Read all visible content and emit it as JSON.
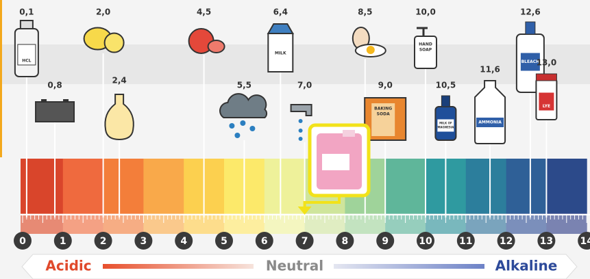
{
  "items": [
    {
      "label": "0,1",
      "icon_text": "HCL"
    },
    {
      "label": "0,8"
    },
    {
      "label": "2,0"
    },
    {
      "label": "2,4"
    },
    {
      "label": "4,5"
    },
    {
      "label": "5,5"
    },
    {
      "label": "6,4",
      "icon_text": "MILK"
    },
    {
      "label": "7,0"
    },
    {
      "label": "8,5"
    },
    {
      "label": "9,0",
      "icon_text": [
        "BAKING",
        "SODA"
      ]
    },
    {
      "label": "10,0",
      "icon_text": [
        "HAND",
        "SOAP"
      ]
    },
    {
      "label": "10,5",
      "icon_text": [
        "MILK OF",
        "MAGNESIA"
      ]
    },
    {
      "label": "11,6",
      "icon_text": "AMMONIA"
    },
    {
      "label": "12,6",
      "icon_text": "BLEACH"
    },
    {
      "label": "13,0",
      "icon_text": "LYE"
    }
  ],
  "scale": [
    "0",
    "1",
    "2",
    "3",
    "4",
    "5",
    "6",
    "7",
    "8",
    "9",
    "10",
    "11",
    "12",
    "13",
    "14"
  ],
  "legend": {
    "acidic": "Acidic",
    "neutral": "Neutral",
    "alkaline": "Alkaline"
  }
}
